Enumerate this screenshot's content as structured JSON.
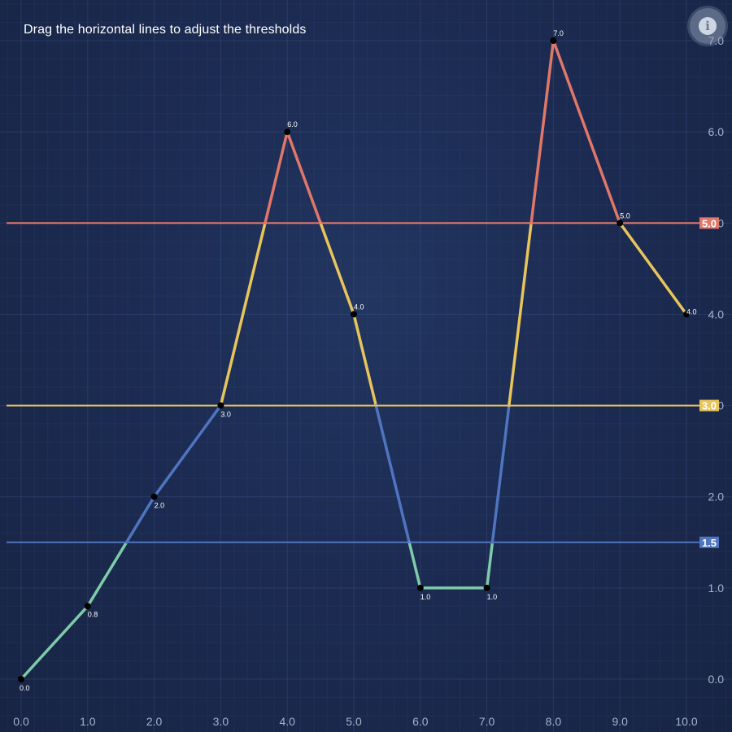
{
  "instruction": "Drag the horizontal lines to adjust the thresholds",
  "info_glyph": "i",
  "info_icon": "info-icon",
  "chart_data": {
    "type": "line",
    "title": "",
    "x": [
      0,
      1,
      2,
      3,
      4,
      5,
      6,
      7,
      8,
      9,
      10
    ],
    "y": [
      0.0,
      0.8,
      2.0,
      3.0,
      6.0,
      4.0,
      1.0,
      1.0,
      7.0,
      5.0,
      4.0
    ],
    "point_labels": [
      "0.0",
      "0.8",
      "2.0",
      "3.0",
      "6.0",
      "4.0",
      "1.0",
      "1.0",
      "7.0",
      "5.0",
      "4.0"
    ],
    "xlim": [
      0,
      10
    ],
    "ylim": [
      0,
      7
    ],
    "x_ticks": [
      "0.0",
      "1.0",
      "2.0",
      "3.0",
      "4.0",
      "5.0",
      "6.0",
      "7.0",
      "8.0",
      "9.0",
      "10.0"
    ],
    "y_ticks": [
      "0.0",
      "1.0",
      "2.0",
      "3.0",
      "4.0",
      "5.0",
      "6.0",
      "7.0"
    ],
    "y_axis_side": "right",
    "grid": true,
    "below_color": "#7ecba9",
    "thresholds": [
      {
        "value": 1.5,
        "label": "1.5",
        "color": "#4f75c0"
      },
      {
        "value": 3.0,
        "label": "3.0",
        "color": "#e8c55c"
      },
      {
        "value": 5.0,
        "label": "5.0",
        "color": "#e07769"
      }
    ]
  }
}
